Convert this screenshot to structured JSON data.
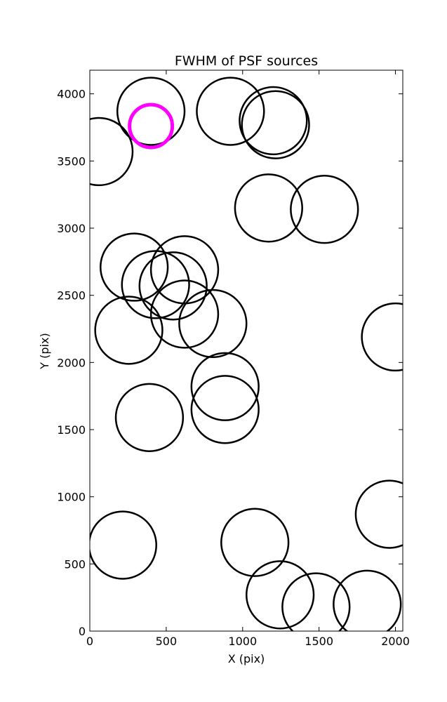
{
  "chart_data": {
    "type": "scatter",
    "title": "FWHM of PSF sources",
    "xlabel": "X (pix)",
    "ylabel": "Y (pix)",
    "xlim": [
      0,
      2048
    ],
    "ylim": [
      0,
      4176
    ],
    "xticks": [
      0,
      500,
      1000,
      1500,
      2000
    ],
    "yticks": [
      0,
      500,
      1000,
      1500,
      2000,
      2500,
      3000,
      3500,
      4000
    ],
    "grid": false,
    "marker_color": "#000000",
    "highlight_color": "#ff00ff",
    "sources": [
      {
        "x": 400,
        "y": 3870,
        "fwhm": 220
      },
      {
        "x": 920,
        "y": 3870,
        "fwhm": 220
      },
      {
        "x": 1200,
        "y": 3800,
        "fwhm": 220
      },
      {
        "x": 1215,
        "y": 3770,
        "fwhm": 220
      },
      {
        "x": 60,
        "y": 3570,
        "fwhm": 220
      },
      {
        "x": 1170,
        "y": 3150,
        "fwhm": 220
      },
      {
        "x": 1535,
        "y": 3140,
        "fwhm": 220
      },
      {
        "x": 290,
        "y": 2710,
        "fwhm": 220
      },
      {
        "x": 620,
        "y": 2690,
        "fwhm": 220
      },
      {
        "x": 430,
        "y": 2580,
        "fwhm": 220
      },
      {
        "x": 545,
        "y": 2570,
        "fwhm": 220
      },
      {
        "x": 620,
        "y": 2360,
        "fwhm": 220
      },
      {
        "x": 805,
        "y": 2290,
        "fwhm": 220
      },
      {
        "x": 255,
        "y": 2240,
        "fwhm": 220
      },
      {
        "x": 2000,
        "y": 2190,
        "fwhm": 220
      },
      {
        "x": 885,
        "y": 1820,
        "fwhm": 220
      },
      {
        "x": 885,
        "y": 1650,
        "fwhm": 220
      },
      {
        "x": 390,
        "y": 1590,
        "fwhm": 220
      },
      {
        "x": 1960,
        "y": 870,
        "fwhm": 220
      },
      {
        "x": 1080,
        "y": 660,
        "fwhm": 220
      },
      {
        "x": 215,
        "y": 640,
        "fwhm": 220
      },
      {
        "x": 1245,
        "y": 270,
        "fwhm": 220
      },
      {
        "x": 1480,
        "y": 180,
        "fwhm": 220
      },
      {
        "x": 1815,
        "y": 200,
        "fwhm": 220
      }
    ],
    "highlight": {
      "x": 400,
      "y": 3760,
      "fwhm": 140
    }
  }
}
